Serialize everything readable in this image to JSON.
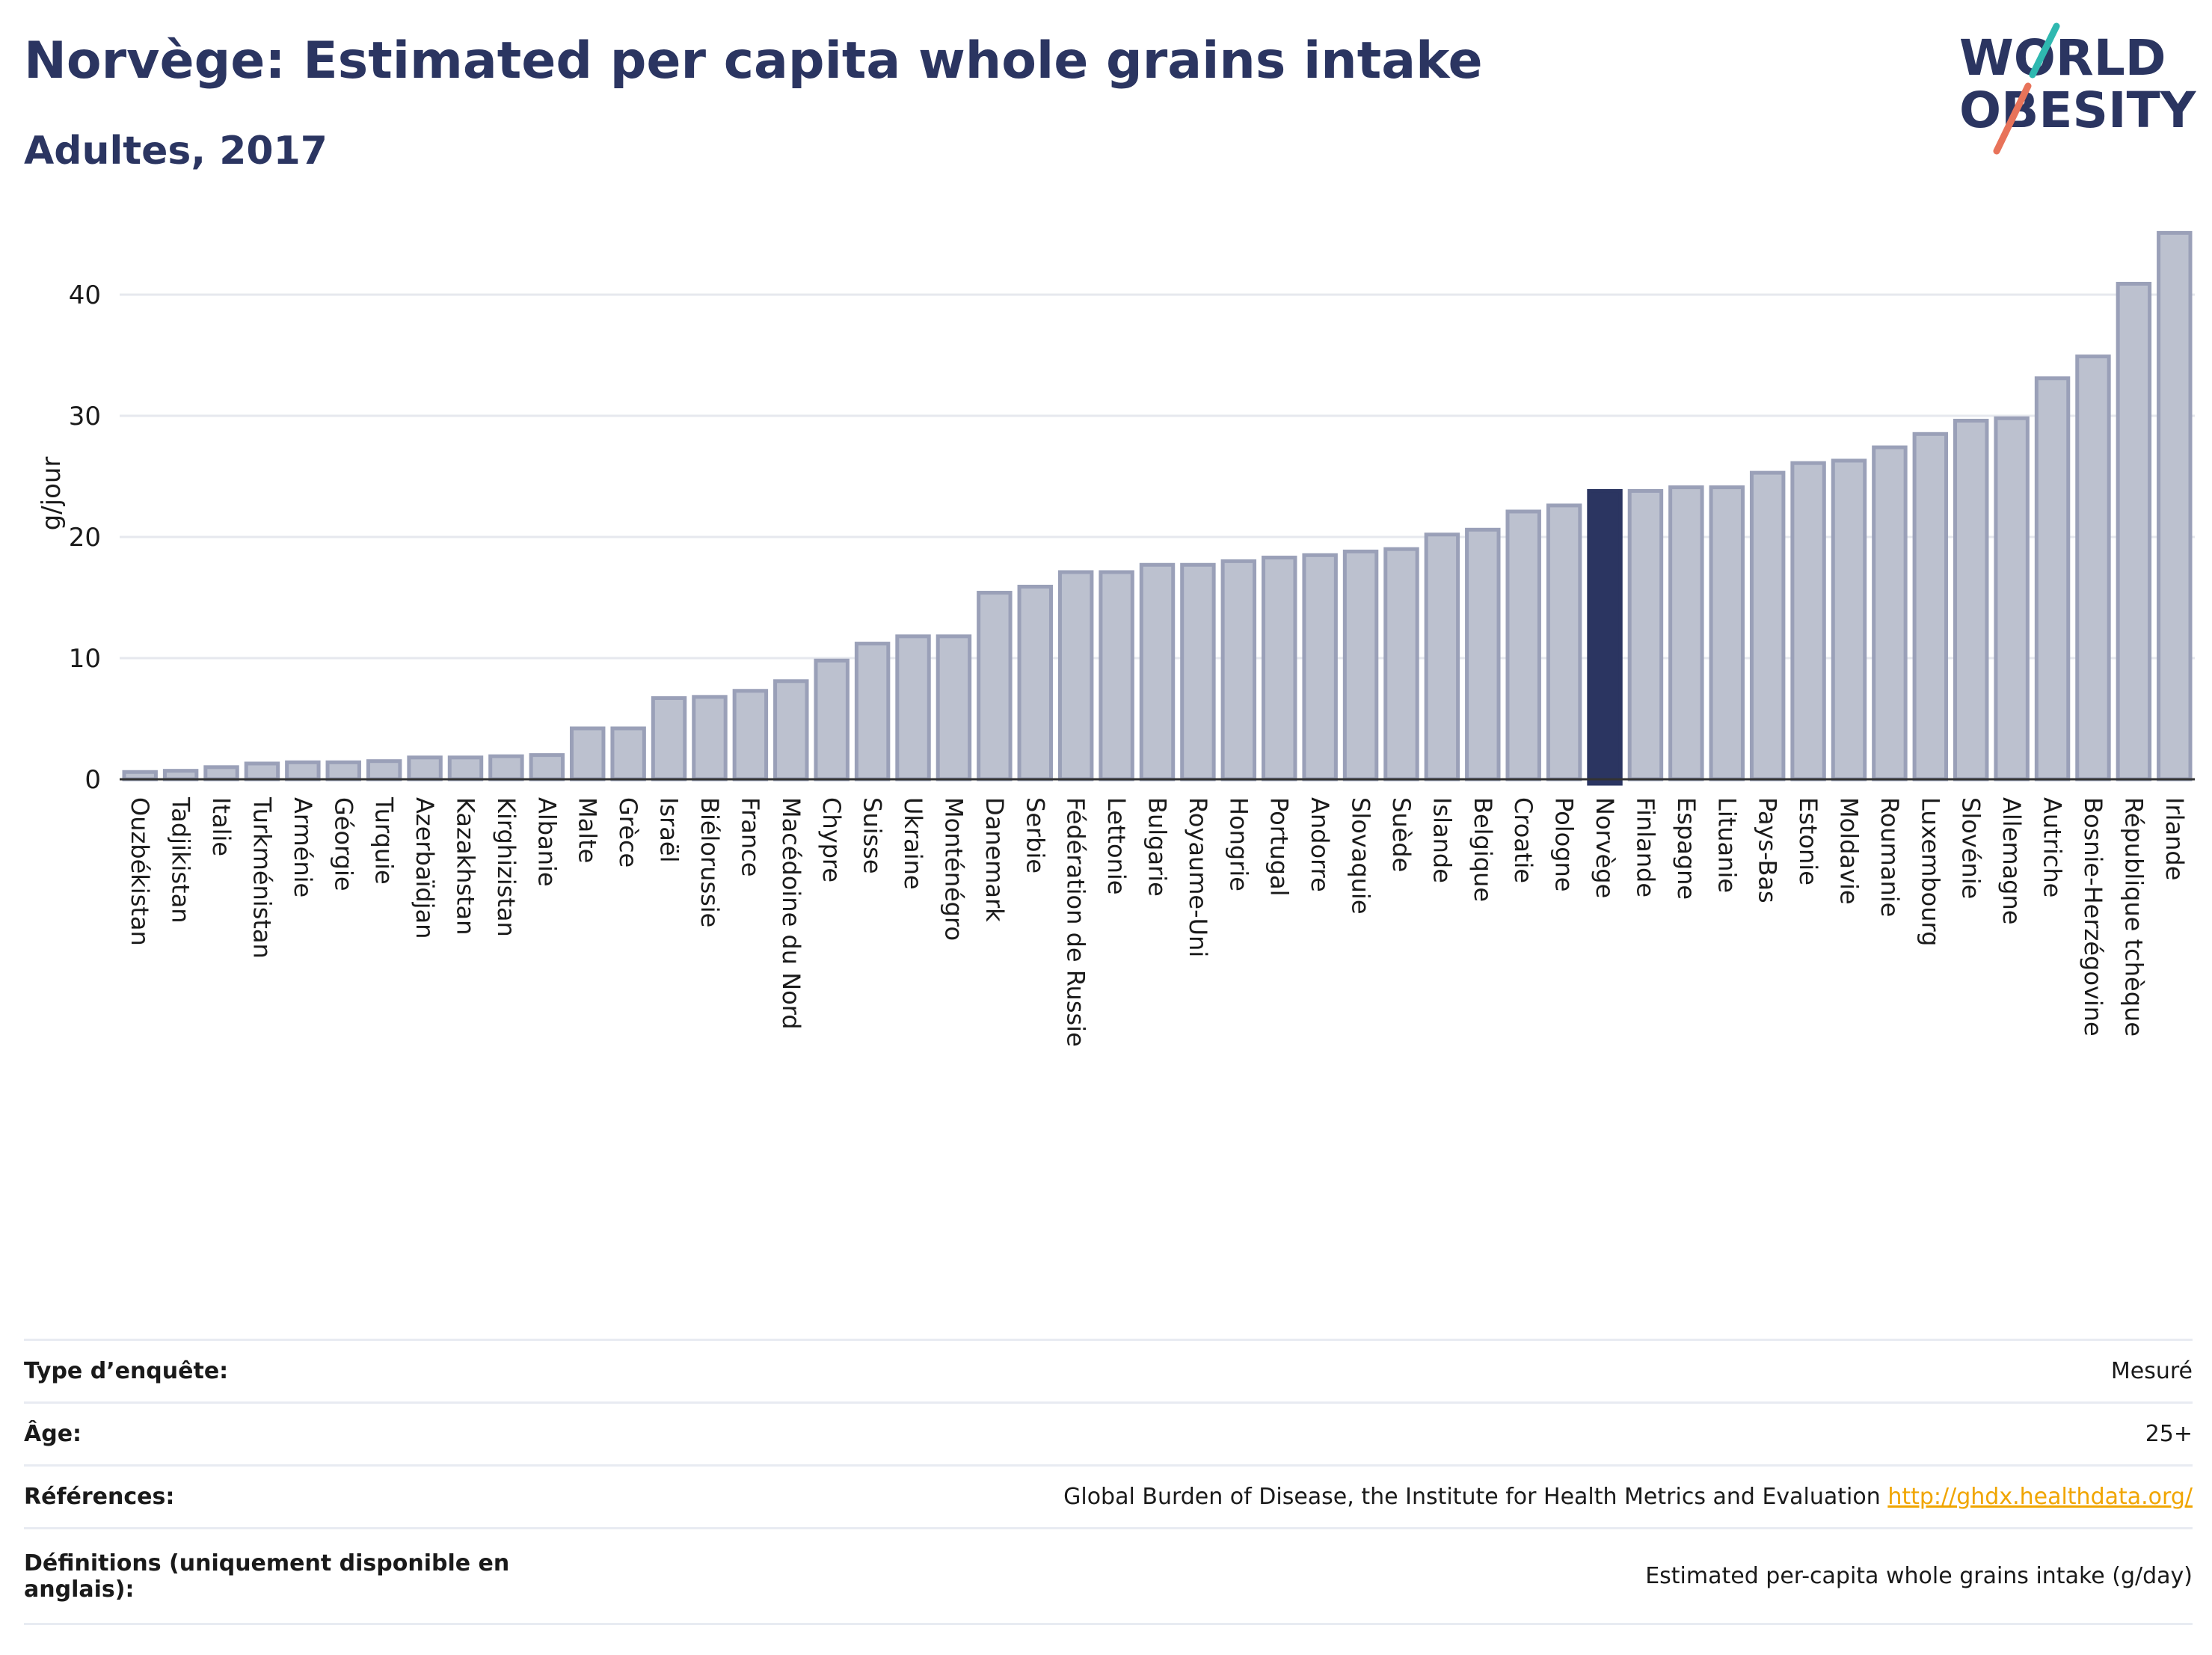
{
  "header": {
    "title": "Norvège: Estimated per capita whole grains intake",
    "subtitle": "Adultes, 2017"
  },
  "logo": {
    "line1": "WORLD",
    "line2": "OBESITY"
  },
  "colors": {
    "bar": "#bcc1cf",
    "bar_border": "#9aa0b8",
    "highlight": "#2b3561",
    "title": "#2b3561",
    "grid": "#e6e8ee",
    "logo_teal": "#2fb8b0",
    "logo_coral": "#e8735a"
  },
  "chart_data": {
    "type": "bar",
    "ylabel": "g/jour",
    "ylim": [
      0,
      47
    ],
    "yticks": [
      0,
      10,
      20,
      30,
      40
    ],
    "highlight": "Norvège",
    "grid": true,
    "categories": [
      "Ouzbékistan",
      "Tadjikistan",
      "Italie",
      "Turkménistan",
      "Arménie",
      "Géorgie",
      "Turquie",
      "Azerbaïdjan",
      "Kazakhstan",
      "Kirghizistan",
      "Albanie",
      "Malte",
      "Grèce",
      "Israël",
      "Biélorussie",
      "France",
      "Macédoine du Nord",
      "Chypre",
      "Suisse",
      "Ukraine",
      "Monténégro",
      "Danemark",
      "Serbie",
      "Fédération de Russie",
      "Lettonie",
      "Bulgarie",
      "Royaume-Uni",
      "Hongrie",
      "Portugal",
      "Andorre",
      "Slovaquie",
      "Suède",
      "Islande",
      "Belgique",
      "Croatie",
      "Pologne",
      "Norvège",
      "Finlande",
      "Espagne",
      "Lituanie",
      "Pays-Bas",
      "Estonie",
      "Moldavie",
      "Roumanie",
      "Luxembourg",
      "Slovénie",
      "Allemagne",
      "Autriche",
      "Bosnie-Herzégovine",
      "République tchèque",
      "Irlande"
    ],
    "values": [
      0.6,
      0.7,
      1.0,
      1.3,
      1.4,
      1.4,
      1.5,
      1.8,
      1.8,
      1.9,
      2.0,
      4.2,
      4.2,
      6.7,
      6.8,
      7.3,
      8.1,
      9.8,
      11.2,
      11.8,
      11.8,
      15.4,
      15.9,
      17.1,
      17.1,
      17.7,
      17.7,
      18.0,
      18.3,
      18.5,
      18.8,
      19.0,
      20.2,
      20.6,
      22.1,
      22.6,
      23.8,
      23.8,
      24.1,
      24.1,
      25.3,
      26.1,
      26.3,
      27.4,
      28.5,
      29.6,
      29.8,
      33.1,
      34.9,
      40.9,
      45.1
    ]
  },
  "info": [
    {
      "label": "Type d’enquête:",
      "value": "Mesuré"
    },
    {
      "label": "Âge:",
      "value": "25+"
    },
    {
      "label": "Références:",
      "value": "Global Burden of Disease, the Institute for Health Metrics and Evaluation",
      "link": "http://ghdx.healthdata.org/"
    },
    {
      "label": "Définitions (uniquement disponible en anglais):",
      "value": "Estimated per-capita whole grains intake (g/day)"
    }
  ]
}
